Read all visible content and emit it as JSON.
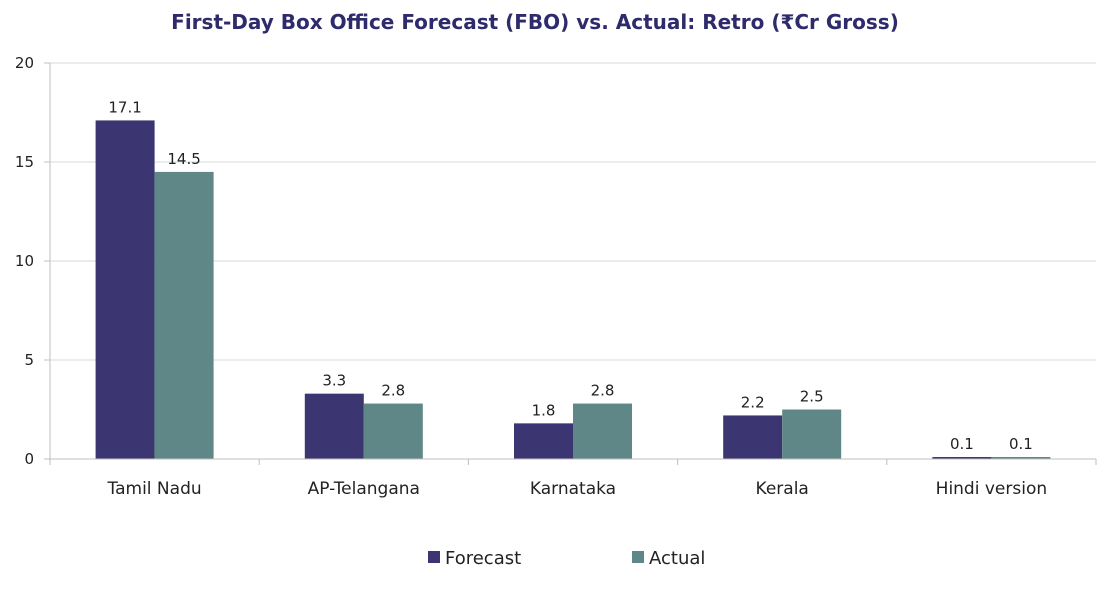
{
  "chart_data": {
    "type": "bar",
    "title": "First-Day Box Office Forecast (FBO) vs. Actual: Retro (₹Cr Gross)",
    "xlabel": "",
    "ylabel": "",
    "categories": [
      "Tamil Nadu",
      "AP-Telangana",
      "Karnataka",
      "Kerala",
      "Hindi version"
    ],
    "series": [
      {
        "name": "Forecast",
        "values": [
          17.1,
          3.3,
          1.8,
          2.2,
          0.1
        ],
        "labels": [
          "17.1",
          "3.3",
          "1.8",
          "2.2",
          "0.1"
        ],
        "color": "#3b3572"
      },
      {
        "name": "Actual",
        "values": [
          14.5,
          2.8,
          2.8,
          2.5,
          0.1
        ],
        "labels": [
          "14.5",
          "2.8",
          "2.8",
          "2.5",
          "0.1"
        ],
        "color": "#5f8788"
      }
    ],
    "ylim": [
      0,
      20
    ],
    "yticks": [
      0,
      5,
      10,
      15,
      20
    ],
    "grid": true,
    "legend": "bottom"
  }
}
